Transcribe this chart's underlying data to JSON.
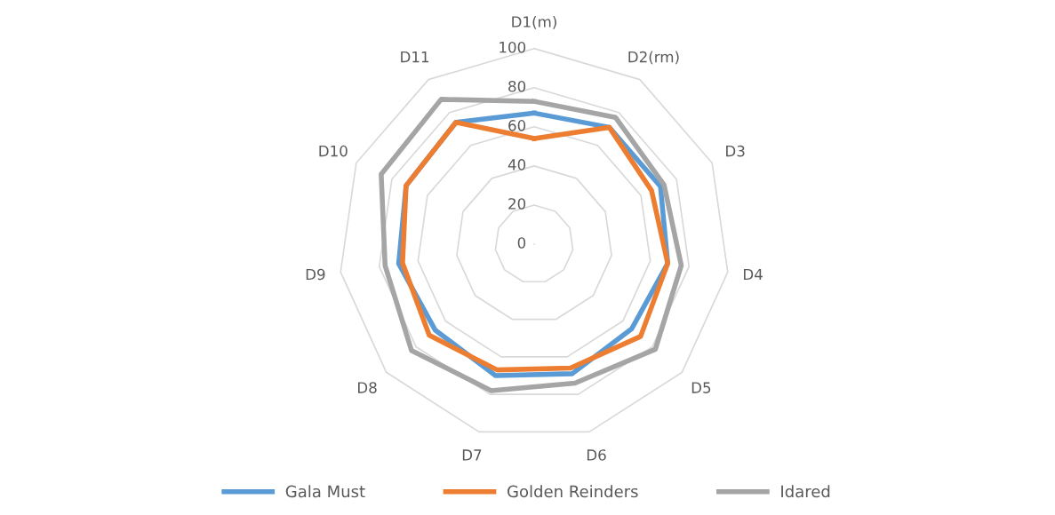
{
  "chart_data": {
    "type": "radar",
    "categories": [
      "D1(m)",
      "D2(rm)",
      "D3",
      "D4",
      "D5",
      "D6",
      "D7",
      "D8",
      "D9",
      "D10",
      "D11"
    ],
    "series": [
      {
        "name": "Gala Must",
        "color": "#5b9bd5",
        "values": [
          67,
          71,
          71,
          69,
          66,
          69,
          70,
          67,
          70,
          72,
          74
        ]
      },
      {
        "name": "Golden Reinders",
        "color": "#ed7d31",
        "values": [
          54,
          71,
          66,
          69,
          72,
          66,
          67,
          71,
          68,
          72,
          74
        ]
      },
      {
        "name": "Idared",
        "color": "#a5a5a5",
        "values": [
          73,
          77,
          73,
          76,
          82,
          74,
          78,
          83,
          77,
          86,
          88
        ]
      }
    ],
    "ylim": [
      0,
      100
    ],
    "yticks": [
      0,
      20,
      40,
      60,
      80,
      100
    ],
    "grid": true,
    "legend": "bottom"
  }
}
